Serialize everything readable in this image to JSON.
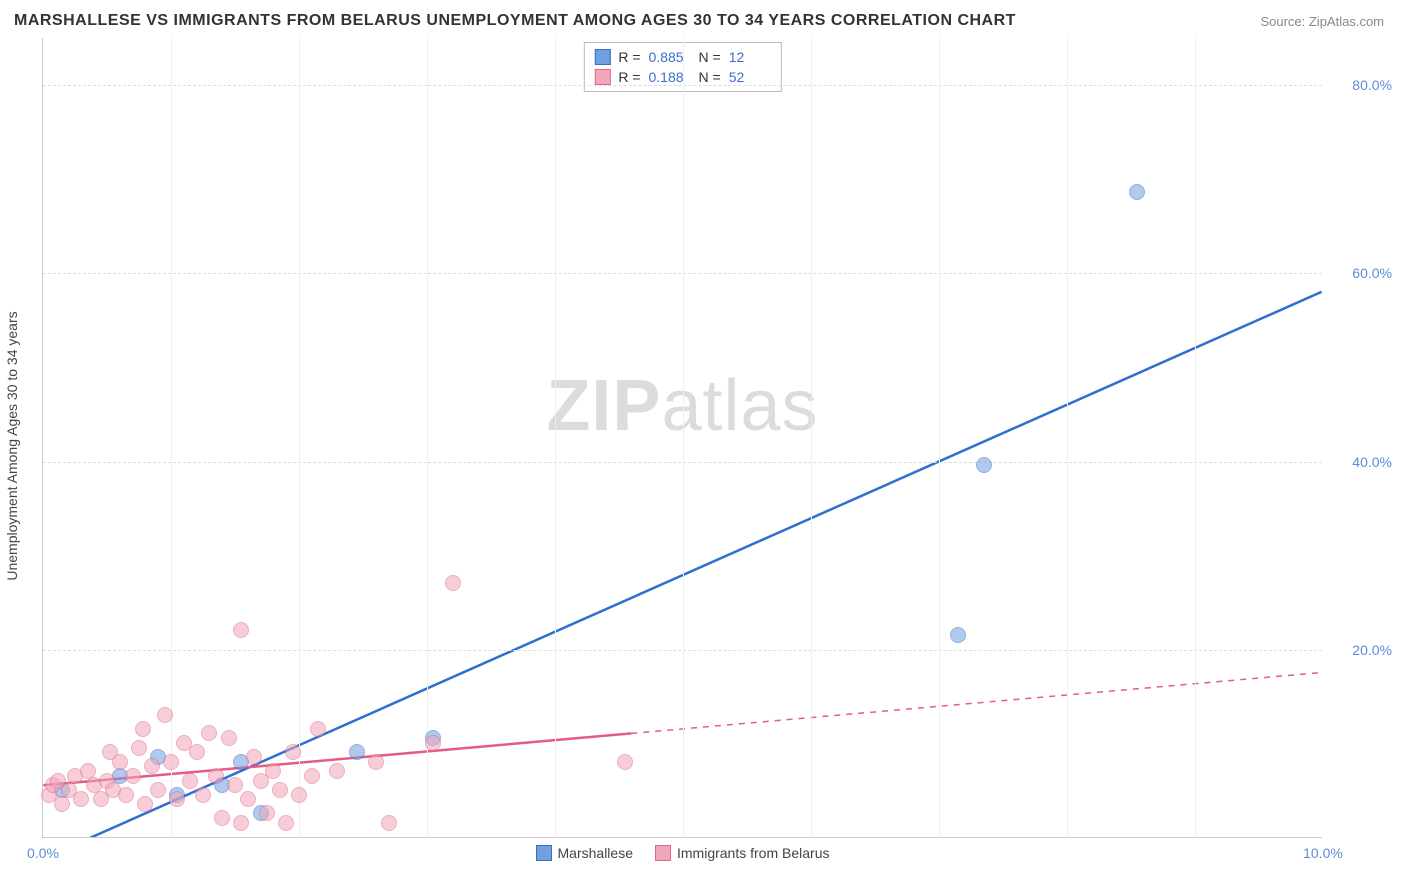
{
  "title": "MARSHALLESE VS IMMIGRANTS FROM BELARUS UNEMPLOYMENT AMONG AGES 30 TO 34 YEARS CORRELATION CHART",
  "source": "Source: ZipAtlas.com",
  "ylabel": "Unemployment Among Ages 30 to 34 years",
  "watermark": {
    "bold": "ZIP",
    "thin": "atlas"
  },
  "chart": {
    "type": "scatter",
    "background_color": "#ffffff",
    "grid_color": "#dddddd",
    "axis_color": "#cccccc",
    "tick_color": "#5b8dd6",
    "label_color": "#444444",
    "title_fontsize": 16,
    "label_fontsize": 14,
    "tick_fontsize": 14,
    "xlim": [
      0,
      10
    ],
    "ylim": [
      0,
      85
    ],
    "xticks": [
      {
        "v": 0,
        "label": "0.0%"
      },
      {
        "v": 10,
        "label": "10.0%"
      }
    ],
    "yticks": [
      {
        "v": 20,
        "label": "20.0%"
      },
      {
        "v": 40,
        "label": "40.0%"
      },
      {
        "v": 60,
        "label": "60.0%"
      },
      {
        "v": 80,
        "label": "80.0%"
      }
    ],
    "x_gridlines": [
      1,
      2,
      3,
      4,
      5,
      6,
      7,
      8,
      9
    ],
    "marker_radius": 8,
    "marker_opacity": 0.55,
    "line_width": 2.5,
    "series": [
      {
        "name": "Marshallese",
        "color": "#6fa0e0",
        "border": "#3a6fc9",
        "line_color": "#2f6fd0",
        "r": "0.885",
        "n": "12",
        "points": [
          [
            0.15,
            5.0
          ],
          [
            0.6,
            6.5
          ],
          [
            0.9,
            8.5
          ],
          [
            1.05,
            4.5
          ],
          [
            1.4,
            5.5
          ],
          [
            1.55,
            8.0
          ],
          [
            1.7,
            2.5
          ],
          [
            2.45,
            9.0
          ],
          [
            3.05,
            10.5
          ],
          [
            7.15,
            21.5
          ],
          [
            7.35,
            39.5
          ],
          [
            8.55,
            68.5
          ]
        ],
        "trend": {
          "x1": 0.05,
          "y1": -2.0,
          "x2": 10.0,
          "y2": 58.0,
          "solid_until": 10.0
        }
      },
      {
        "name": "Immigrants from Belarus",
        "color": "#f2a7b9",
        "border": "#e06a8a",
        "line_color": "#e65a86",
        "r": "0.188",
        "n": "52",
        "points": [
          [
            0.05,
            4.5
          ],
          [
            0.08,
            5.5
          ],
          [
            0.12,
            6.0
          ],
          [
            0.15,
            3.5
          ],
          [
            0.2,
            5.0
          ],
          [
            0.25,
            6.5
          ],
          [
            0.3,
            4.0
          ],
          [
            0.35,
            7.0
          ],
          [
            0.4,
            5.5
          ],
          [
            0.45,
            4.0
          ],
          [
            0.5,
            6.0
          ],
          [
            0.52,
            9.0
          ],
          [
            0.55,
            5.0
          ],
          [
            0.6,
            8.0
          ],
          [
            0.65,
            4.5
          ],
          [
            0.7,
            6.5
          ],
          [
            0.75,
            9.5
          ],
          [
            0.78,
            11.5
          ],
          [
            0.8,
            3.5
          ],
          [
            0.85,
            7.5
          ],
          [
            0.9,
            5.0
          ],
          [
            0.95,
            13.0
          ],
          [
            1.0,
            8.0
          ],
          [
            1.05,
            4.0
          ],
          [
            1.1,
            10.0
          ],
          [
            1.15,
            6.0
          ],
          [
            1.2,
            9.0
          ],
          [
            1.25,
            4.5
          ],
          [
            1.3,
            11.0
          ],
          [
            1.35,
            6.5
          ],
          [
            1.4,
            2.0
          ],
          [
            1.45,
            10.5
          ],
          [
            1.5,
            5.5
          ],
          [
            1.55,
            22.0
          ],
          [
            1.55,
            1.5
          ],
          [
            1.6,
            4.0
          ],
          [
            1.65,
            8.5
          ],
          [
            1.7,
            6.0
          ],
          [
            1.75,
            2.5
          ],
          [
            1.8,
            7.0
          ],
          [
            1.85,
            5.0
          ],
          [
            1.9,
            1.5
          ],
          [
            1.95,
            9.0
          ],
          [
            2.0,
            4.5
          ],
          [
            2.1,
            6.5
          ],
          [
            2.15,
            11.5
          ],
          [
            2.3,
            7.0
          ],
          [
            2.6,
            8.0
          ],
          [
            2.7,
            1.5
          ],
          [
            3.05,
            10.0
          ],
          [
            3.2,
            27.0
          ],
          [
            4.55,
            8.0
          ]
        ],
        "trend": {
          "x1": 0.0,
          "y1": 5.5,
          "x2": 10.0,
          "y2": 17.5,
          "solid_until": 4.6
        }
      }
    ],
    "stats_labels": {
      "r": "R =",
      "n": "N ="
    }
  },
  "legend_items": [
    "Marshallese",
    "Immigrants from Belarus"
  ]
}
